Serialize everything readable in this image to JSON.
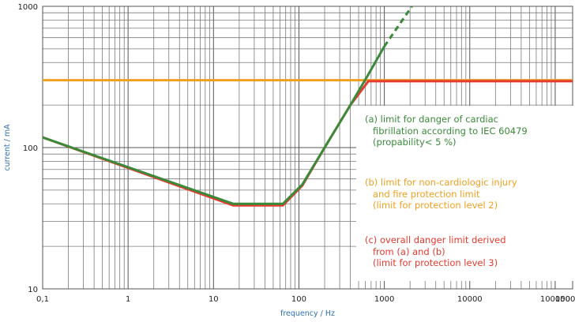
{
  "chart_data": {
    "type": "line",
    "xscale": "log",
    "yscale": "log",
    "xlim": [
      0.1,
      160000
    ],
    "ylim": [
      10,
      1000
    ],
    "xlabel": "frequency / Hz",
    "ylabel": "current / mA",
    "grid": true,
    "legend_position": "bottom-right",
    "x_ticks": [
      {
        "value": 0.1,
        "label": "0,1"
      },
      {
        "value": 1,
        "label": "1"
      },
      {
        "value": 10,
        "label": "10"
      },
      {
        "value": 100,
        "label": "100"
      },
      {
        "value": 1000,
        "label": "1000"
      },
      {
        "value": 10000,
        "label": "10000"
      },
      {
        "value": 100000,
        "label": "100000"
      },
      {
        "value": 150000,
        "label": "150000"
      }
    ],
    "y_ticks": [
      {
        "value": 10,
        "label": "10"
      },
      {
        "value": 100,
        "label": "100"
      },
      {
        "value": 1000,
        "label": "1000"
      }
    ],
    "series": [
      {
        "key": "a",
        "color": "#3a8a3a",
        "points": [
          [
            0.1,
            118
          ],
          [
            17,
            40
          ],
          [
            65,
            40
          ],
          [
            110,
            55
          ],
          [
            200,
            100
          ],
          [
            400,
            200
          ],
          [
            650,
            330
          ],
          [
            1000,
            520
          ]
        ],
        "extension": [
          [
            1000,
            520
          ],
          [
            2100,
            1000
          ]
        ]
      },
      {
        "key": "b",
        "color": "#f0a020",
        "points": [
          [
            0.1,
            300
          ],
          [
            160000,
            300
          ]
        ]
      },
      {
        "key": "c",
        "color": "#e53a2e",
        "points": [
          [
            0.1,
            118
          ],
          [
            17,
            39
          ],
          [
            65,
            39
          ],
          [
            110,
            54
          ],
          [
            200,
            100
          ],
          [
            400,
            200
          ],
          [
            650,
            295
          ],
          [
            160000,
            295
          ]
        ]
      }
    ]
  },
  "legend": [
    {
      "color": "#3a8a3a",
      "lines": [
        "(a) limit for danger of cardiac",
        "fibrillation according to IEC 60479",
        "(propability< 5 %)"
      ]
    },
    {
      "color": "#f0a020",
      "lines": [
        "(b) limit for non-cardiologic injury",
        "and fire protection limit",
        "(limit for protection level 2)"
      ]
    },
    {
      "color": "#e53a2e",
      "lines": [
        "(c) overall danger limit derived",
        "from (a) and (b)",
        "(limit for protection level 3)"
      ]
    }
  ]
}
